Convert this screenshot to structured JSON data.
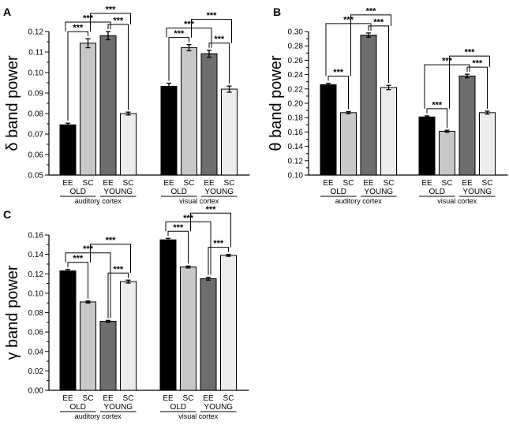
{
  "bar_colors": [
    "#000000",
    "#c8c8c8",
    "#6e6e6e",
    "#ececec"
  ],
  "chart_data": [
    {
      "type": "bar",
      "panel_label": "A",
      "ylabel": "δ band power",
      "ylim": [
        0.05,
        0.12
      ],
      "yticks": [
        "0.05",
        "0.06",
        "0.07",
        "0.08",
        "0.09",
        "0.10",
        "0.11",
        "0.12"
      ],
      "grid": false,
      "groups": [
        {
          "name": "auditory cortex",
          "age_labels": [
            "OLD",
            "YOUNG"
          ],
          "categories": [
            "EE",
            "SC",
            "EE",
            "SC"
          ],
          "values": [
            0.0745,
            0.1143,
            0.118,
            0.08
          ],
          "errors": [
            0.0008,
            0.0022,
            0.002,
            0.0007
          ]
        },
        {
          "name": "visual cortex",
          "age_labels": [
            "OLD",
            "YOUNG"
          ],
          "categories": [
            "EE",
            "SC",
            "EE",
            "SC"
          ],
          "values": [
            0.0933,
            0.1121,
            0.1092,
            0.0919
          ],
          "errors": [
            0.0015,
            0.0015,
            0.0017,
            0.0015
          ]
        }
      ],
      "significance": [
        {
          "label": "***",
          "group": 0,
          "from": 0,
          "to": 1
        },
        {
          "label": "***",
          "group": 0,
          "from": 0,
          "to": 2
        },
        {
          "label": "***",
          "group": 0,
          "from": 1,
          "to": 3
        },
        {
          "label": "***",
          "group": 0,
          "from": 2,
          "to": 3
        },
        {
          "label": "***",
          "group": 1,
          "from": 0,
          "to": 1
        },
        {
          "label": "***",
          "group": 1,
          "from": 0,
          "to": 2
        },
        {
          "label": "***",
          "group": 1,
          "from": 1,
          "to": 3
        },
        {
          "label": "***",
          "group": 1,
          "from": 2,
          "to": 3
        }
      ]
    },
    {
      "type": "bar",
      "panel_label": "B",
      "ylabel": "θ band power",
      "ylim": [
        0.1,
        0.3
      ],
      "yticks": [
        "0.10",
        "0.12",
        "0.14",
        "0.16",
        "0.18",
        "0.20",
        "0.22",
        "0.24",
        "0.26",
        "0.28",
        "0.30"
      ],
      "grid": false,
      "groups": [
        {
          "name": "auditory cortex",
          "age_labels": [
            "OLD",
            "YOUNG"
          ],
          "categories": [
            "EE",
            "SC",
            "EE",
            "SC"
          ],
          "values": [
            0.226,
            0.187,
            0.295,
            0.222
          ],
          "errors": [
            0.002,
            0.0015,
            0.003,
            0.003
          ]
        },
        {
          "name": "visual cortex",
          "age_labels": [
            "OLD",
            "YOUNG"
          ],
          "categories": [
            "EE",
            "SC",
            "EE",
            "SC"
          ],
          "values": [
            0.181,
            0.161,
            0.238,
            0.187
          ],
          "errors": [
            0.0015,
            0.0015,
            0.0025,
            0.002
          ]
        }
      ],
      "significance": [
        {
          "label": "***",
          "group": 0,
          "from": 0,
          "to": 1
        },
        {
          "label": "***",
          "group": 0,
          "from": 0,
          "to": 2
        },
        {
          "label": "***",
          "group": 0,
          "from": 1,
          "to": 3
        },
        {
          "label": "***",
          "group": 0,
          "from": 2,
          "to": 3
        },
        {
          "label": "***",
          "group": 1,
          "from": 0,
          "to": 1
        },
        {
          "label": "***",
          "group": 1,
          "from": 0,
          "to": 2
        },
        {
          "label": "***",
          "group": 1,
          "from": 1,
          "to": 3
        },
        {
          "label": "***",
          "group": 1,
          "from": 2,
          "to": 3
        }
      ]
    },
    {
      "type": "bar",
      "panel_label": "C",
      "ylabel": "γ band power",
      "ylim": [
        0.0,
        0.16
      ],
      "yticks": [
        "0.00",
        "0.02",
        "0.04",
        "0.06",
        "0.08",
        "0.10",
        "0.12",
        "0.14",
        "0.16"
      ],
      "grid": false,
      "groups": [
        {
          "name": "auditory cortex",
          "age_labels": [
            "OLD",
            "YOUNG"
          ],
          "categories": [
            "EE",
            "SC",
            "EE",
            "SC"
          ],
          "values": [
            0.123,
            0.091,
            0.071,
            0.112
          ],
          "errors": [
            0.0015,
            0.001,
            0.001,
            0.0015
          ]
        },
        {
          "name": "visual cortex",
          "age_labels": [
            "OLD",
            "YOUNG"
          ],
          "categories": [
            "EE",
            "SC",
            "EE",
            "SC"
          ],
          "values": [
            0.155,
            0.127,
            0.115,
            0.139
          ],
          "errors": [
            0.0015,
            0.001,
            0.0015,
            0.001
          ]
        }
      ],
      "significance": [
        {
          "label": "***",
          "group": 0,
          "from": 0,
          "to": 1
        },
        {
          "label": "***",
          "group": 0,
          "from": 0,
          "to": 2
        },
        {
          "label": "***",
          "group": 0,
          "from": 1,
          "to": 3
        },
        {
          "label": "***",
          "group": 0,
          "from": 2,
          "to": 3
        },
        {
          "label": "***",
          "group": 1,
          "from": 0,
          "to": 1
        },
        {
          "label": "***",
          "group": 1,
          "from": 0,
          "to": 2
        },
        {
          "label": "***",
          "group": 1,
          "from": 1,
          "to": 3
        },
        {
          "label": "***",
          "group": 1,
          "from": 2,
          "to": 3
        }
      ]
    }
  ]
}
